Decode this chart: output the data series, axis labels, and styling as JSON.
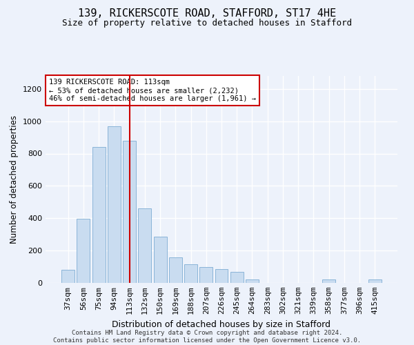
{
  "title_line1": "139, RICKERSCOTE ROAD, STAFFORD, ST17 4HE",
  "title_line2": "Size of property relative to detached houses in Stafford",
  "xlabel": "Distribution of detached houses by size in Stafford",
  "ylabel": "Number of detached properties",
  "categories": [
    "37sqm",
    "56sqm",
    "75sqm",
    "94sqm",
    "113sqm",
    "132sqm",
    "150sqm",
    "169sqm",
    "188sqm",
    "207sqm",
    "226sqm",
    "245sqm",
    "264sqm",
    "283sqm",
    "302sqm",
    "321sqm",
    "339sqm",
    "358sqm",
    "377sqm",
    "396sqm",
    "415sqm"
  ],
  "values": [
    80,
    395,
    840,
    970,
    880,
    460,
    285,
    160,
    115,
    100,
    85,
    70,
    20,
    0,
    0,
    0,
    0,
    20,
    0,
    0,
    20
  ],
  "bar_color": "#c9dcf0",
  "bar_edge_color": "#8ab4d8",
  "vline_index": 4,
  "vline_color": "#cc0000",
  "annotation_text": "139 RICKERSCOTE ROAD: 113sqm\n← 53% of detached houses are smaller (2,232)\n46% of semi-detached houses are larger (1,961) →",
  "annotation_box_facecolor": "#ffffff",
  "annotation_box_edgecolor": "#cc0000",
  "ylim": [
    0,
    1280
  ],
  "yticks": [
    0,
    200,
    400,
    600,
    800,
    1000,
    1200
  ],
  "footer_line1": "Contains HM Land Registry data © Crown copyright and database right 2024.",
  "footer_line2": "Contains public sector information licensed under the Open Government Licence v3.0.",
  "bg_color": "#edf2fb",
  "title_fontsize": 11,
  "subtitle_fontsize": 9,
  "ylabel_fontsize": 8.5,
  "xlabel_fontsize": 9,
  "tick_fontsize": 8,
  "footer_fontsize": 6.5
}
